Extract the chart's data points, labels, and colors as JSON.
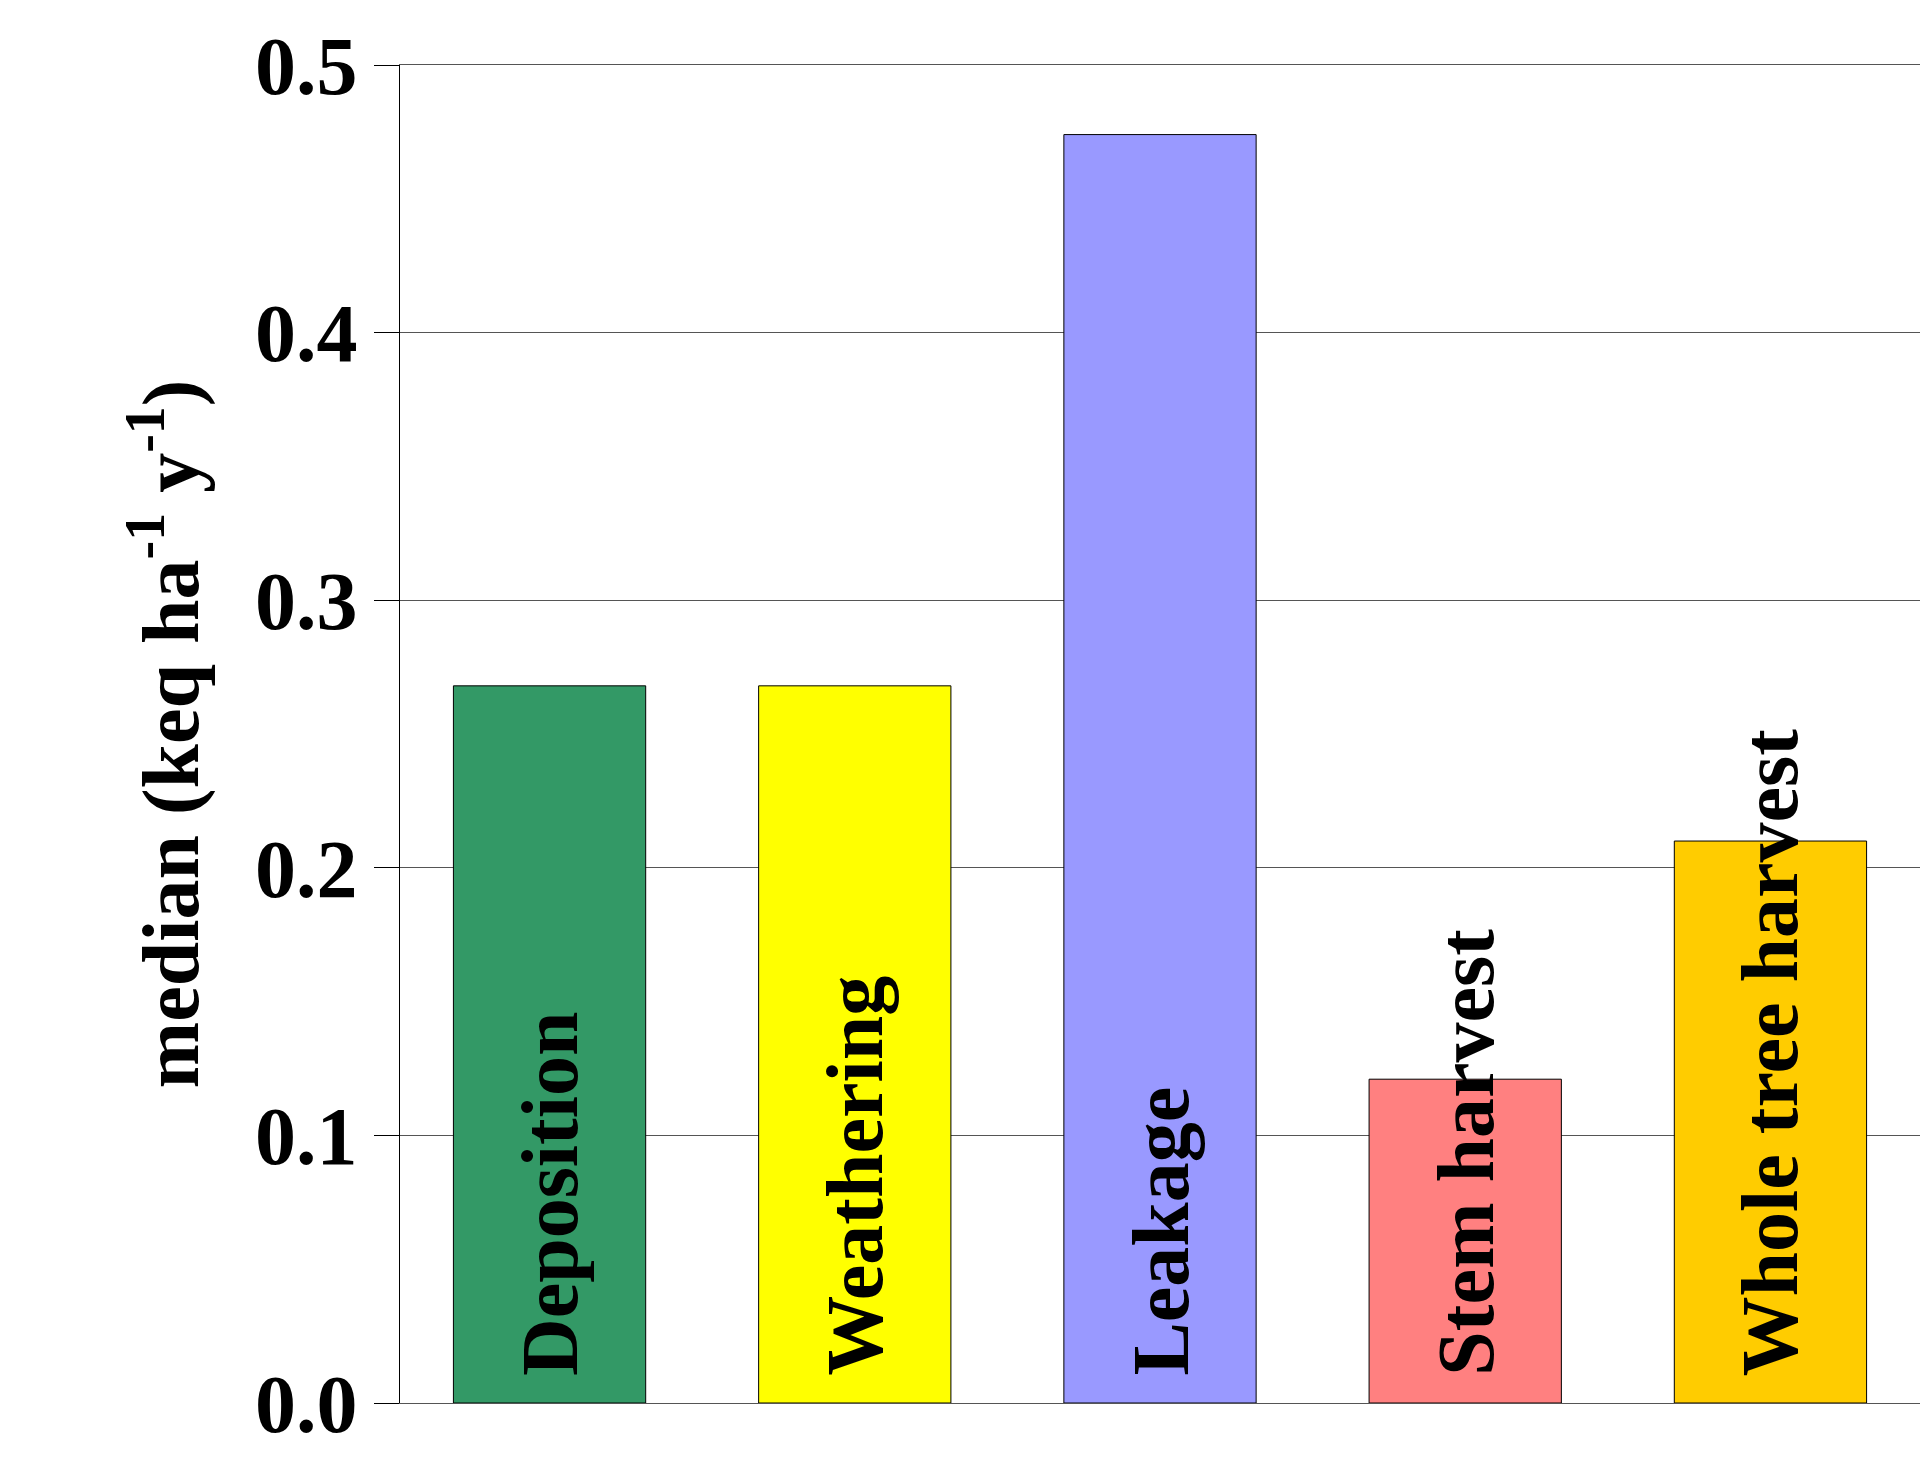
{
  "chart_data": {
    "type": "bar",
    "ylabel": "median (keq ha$^{-1}$ y$^{-1}$)",
    "categories": [
      "Deposition",
      "Weathering",
      "Leakage",
      "Stem harvest",
      "Whole tree harvest"
    ],
    "values": [
      0.268,
      0.268,
      0.474,
      0.121,
      0.21
    ],
    "colors": [
      "#339966",
      "#ffff00",
      "#9999ff",
      "#ff8080",
      "#ffcc00"
    ],
    "ylim": [
      0,
      0.5
    ],
    "yticks": [
      {
        "value": 0,
        "label": "0.0"
      },
      0.1,
      0.2,
      0.3,
      0.4,
      0.5
    ],
    "grid": "y"
  }
}
